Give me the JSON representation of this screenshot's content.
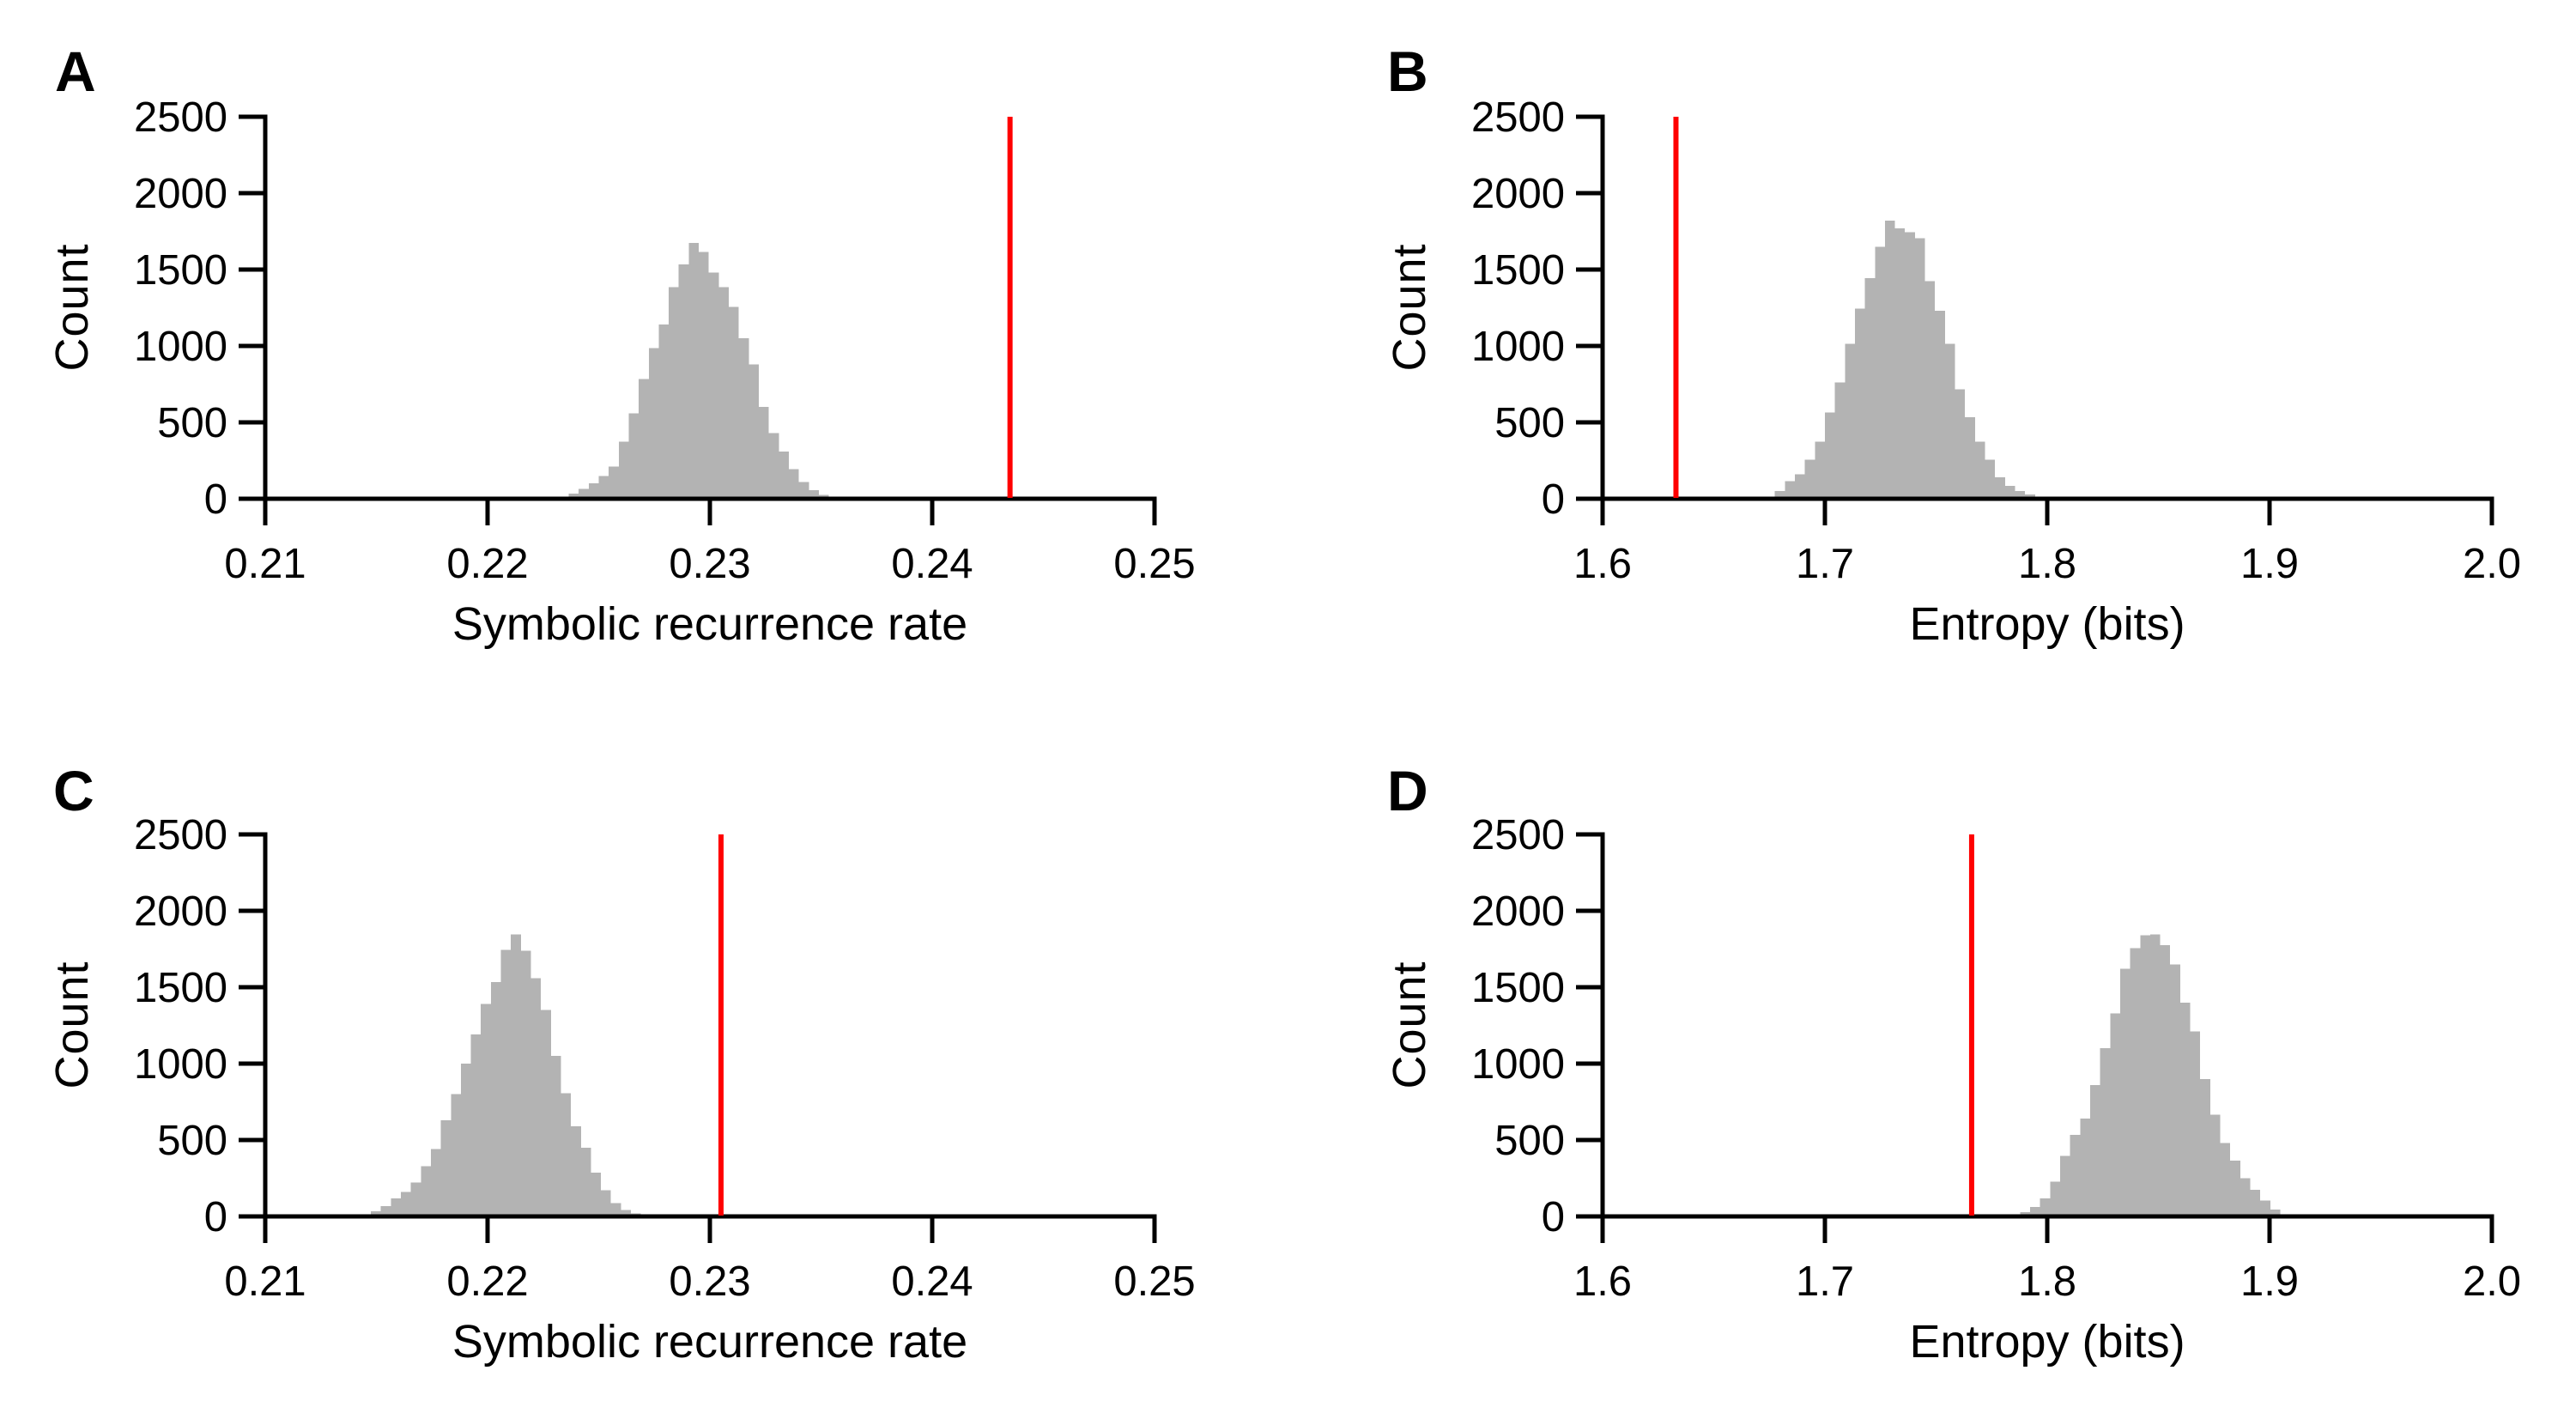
{
  "figure": {
    "background": "#ffffff",
    "axis_color": "#000000"
  },
  "chart_data": [
    {
      "panel": "A",
      "type": "bar",
      "subtype": "histogram-with-observed-line",
      "xlabel": "Symbolic recurrence rate",
      "ylabel": "Count",
      "xlim": [
        0.21,
        0.25
      ],
      "ylim": [
        0,
        2500
      ],
      "x_ticks": [
        "0.21",
        "0.22",
        "0.23",
        "0.24",
        "0.25"
      ],
      "x_tick_values": [
        0.21,
        0.22,
        0.23,
        0.24,
        0.25
      ],
      "y_ticks": [
        "0",
        "500",
        "1000",
        "1500",
        "2000",
        "2500"
      ],
      "y_tick_values": [
        0,
        500,
        1000,
        1500,
        2000,
        2500
      ],
      "bar_color": "#b3b3b3",
      "observed_line": {
        "x": 0.2435,
        "color": "#ff0000"
      },
      "histogram": {
        "bin_start": 0.2232,
        "bin_width": 0.00045,
        "counts": [
          15,
          35,
          65,
          100,
          150,
          210,
          375,
          560,
          785,
          985,
          1140,
          1385,
          1535,
          1675,
          1615,
          1480,
          1385,
          1255,
          1050,
          880,
          600,
          430,
          310,
          195,
          110,
          55,
          25,
          10
        ]
      }
    },
    {
      "panel": "B",
      "type": "bar",
      "subtype": "histogram-with-observed-line",
      "xlabel": "Entropy (bits)",
      "ylabel": "Count",
      "xlim": [
        1.6,
        2.0
      ],
      "ylim": [
        0,
        2500
      ],
      "x_ticks": [
        "1.6",
        "1.7",
        "1.8",
        "1.9",
        "2.0"
      ],
      "x_tick_values": [
        1.6,
        1.7,
        1.8,
        1.9,
        2.0
      ],
      "y_ticks": [
        "0",
        "500",
        "1000",
        "1500",
        "2000",
        "2500"
      ],
      "y_tick_values": [
        0,
        500,
        1000,
        1500,
        2000,
        2500
      ],
      "bar_color": "#b3b3b3",
      "observed_line": {
        "x": 1.633,
        "color": "#ff0000"
      },
      "histogram": {
        "bin_start": 1.6775,
        "bin_width": 0.0045,
        "counts": [
          50,
          115,
          160,
          255,
          375,
          565,
          760,
          1015,
          1245,
          1445,
          1650,
          1820,
          1770,
          1745,
          1705,
          1425,
          1230,
          1015,
          715,
          535,
          375,
          255,
          140,
          85,
          50,
          28
        ]
      }
    },
    {
      "panel": "C",
      "type": "bar",
      "subtype": "histogram-with-observed-line",
      "xlabel": "Symbolic recurrence rate",
      "ylabel": "Count",
      "xlim": [
        0.21,
        0.25
      ],
      "ylim": [
        0,
        2500
      ],
      "x_ticks": [
        "0.21",
        "0.22",
        "0.23",
        "0.24",
        "0.25"
      ],
      "x_tick_values": [
        0.21,
        0.22,
        0.23,
        0.24,
        0.25
      ],
      "y_ticks": [
        "0",
        "500",
        "1000",
        "1500",
        "2000",
        "2500"
      ],
      "y_tick_values": [
        0,
        500,
        1000,
        1500,
        2000,
        2500
      ],
      "bar_color": "#b3b3b3",
      "observed_line": {
        "x": 0.2305,
        "color": "#ff0000"
      },
      "histogram": {
        "bin_start": 0.2143,
        "bin_width": 0.00045,
        "counts": [
          11,
          35,
          67,
          118,
          161,
          223,
          330,
          442,
          629,
          800,
          1000,
          1190,
          1390,
          1535,
          1745,
          1845,
          1740,
          1560,
          1350,
          1050,
          805,
          590,
          450,
          287,
          170,
          86,
          43,
          21,
          8
        ]
      }
    },
    {
      "panel": "D",
      "type": "bar",
      "subtype": "histogram-with-observed-line",
      "xlabel": "Entropy (bits)",
      "ylabel": "Count",
      "xlim": [
        1.6,
        2.0
      ],
      "ylim": [
        0,
        2500
      ],
      "x_ticks": [
        "1.6",
        "1.7",
        "1.8",
        "1.9",
        "2.0"
      ],
      "x_tick_values": [
        1.6,
        1.7,
        1.8,
        1.9,
        2.0
      ],
      "y_ticks": [
        "0",
        "500",
        "1000",
        "1500",
        "2000",
        "2500"
      ],
      "y_tick_values": [
        0,
        500,
        1000,
        1500,
        2000,
        2500
      ],
      "bar_color": "#b3b3b3",
      "observed_line": {
        "x": 1.766,
        "color": "#ff0000"
      },
      "histogram": {
        "bin_start": 1.7833,
        "bin_width": 0.0045,
        "counts": [
          10,
          27,
          62,
          118,
          227,
          395,
          534,
          640,
          860,
          1100,
          1330,
          1620,
          1755,
          1840,
          1845,
          1775,
          1650,
          1400,
          1210,
          900,
          665,
          480,
          365,
          250,
          175,
          105,
          45
        ]
      }
    }
  ]
}
